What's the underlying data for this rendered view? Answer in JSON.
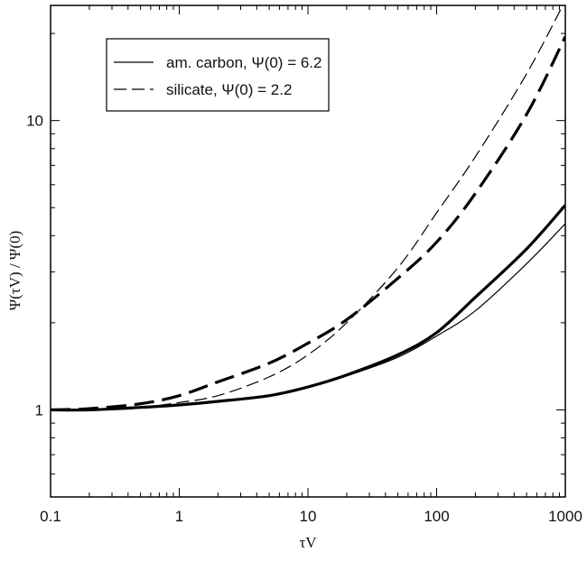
{
  "chart_data": {
    "type": "line",
    "xscale": "log",
    "yscale": "log",
    "xlim": [
      0.1,
      1000
    ],
    "ylim": [
      0.5,
      25
    ],
    "xlabel": "τV",
    "ylabel": "Ψ(τV) / Ψ(0)",
    "x_ticks": [
      {
        "value": 0.1,
        "label": "0.1"
      },
      {
        "value": 1,
        "label": "1"
      },
      {
        "value": 10,
        "label": "10"
      },
      {
        "value": 100,
        "label": "100"
      },
      {
        "value": 1000,
        "label": "1000"
      }
    ],
    "y_ticks": [
      {
        "value": 1,
        "label": "1"
      },
      {
        "value": 10,
        "label": "10"
      }
    ],
    "legend": {
      "placement": "top-left",
      "entries": [
        {
          "label": "am. carbon, Ψ(0) = 6.2",
          "style": "solid"
        },
        {
          "label": "silicate, Ψ(0) = 2.2",
          "style": "dashed"
        }
      ]
    },
    "series": [
      {
        "style": "solid-thick",
        "x": [
          0.1,
          0.2,
          0.5,
          1,
          2,
          5,
          10,
          20,
          50,
          100,
          200,
          500,
          1000
        ],
        "y": [
          1.0,
          1.0,
          1.02,
          1.04,
          1.07,
          1.12,
          1.2,
          1.32,
          1.55,
          1.85,
          2.45,
          3.6,
          5.1
        ]
      },
      {
        "style": "solid-thin",
        "x": [
          0.1,
          0.2,
          0.5,
          1,
          2,
          5,
          10,
          20,
          50,
          100,
          200,
          500,
          1000
        ],
        "y": [
          1.0,
          1.0,
          1.02,
          1.04,
          1.07,
          1.12,
          1.2,
          1.31,
          1.52,
          1.8,
          2.2,
          3.2,
          4.4
        ]
      },
      {
        "style": "dashed-thick",
        "x": [
          0.1,
          0.2,
          0.5,
          1,
          2,
          5,
          10,
          20,
          50,
          100,
          200,
          500,
          1000
        ],
        "y": [
          1.0,
          1.01,
          1.05,
          1.12,
          1.25,
          1.45,
          1.7,
          2.05,
          2.85,
          3.8,
          5.6,
          10.5,
          19.5
        ]
      },
      {
        "style": "dashed-thin",
        "x": [
          0.1,
          0.2,
          0.5,
          1,
          2,
          5,
          10,
          20,
          50,
          100,
          200,
          500,
          1000
        ],
        "y": [
          1.0,
          1.0,
          1.02,
          1.06,
          1.12,
          1.3,
          1.55,
          2.0,
          3.1,
          4.8,
          7.5,
          14.5,
          26
        ]
      }
    ],
    "grid": false
  }
}
